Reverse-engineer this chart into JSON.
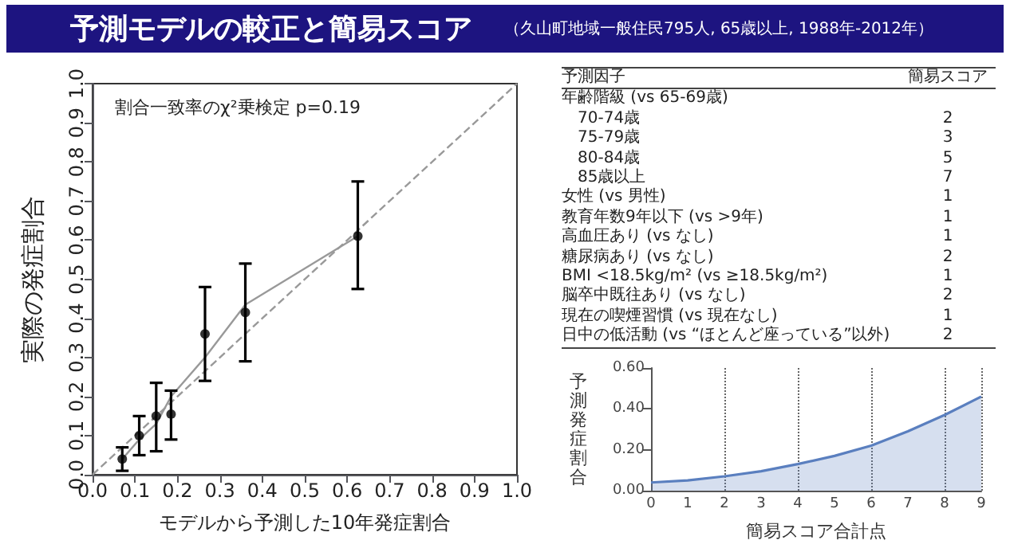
{
  "chart_data": [
    {
      "type": "scatter",
      "title": "予測モデルの較正と簡易スコア",
      "subtitle": "（久山町地域一般住民795人, 65歳以上, 1988年-2012年）",
      "xlabel": "モデルから予測した10年発症割合",
      "ylabel": "実際の発症割合",
      "annotations": [
        "割合一致率のχ²乗検定 p=0.19"
      ],
      "xlim": [
        0,
        1
      ],
      "ylim": [
        0,
        1
      ],
      "xticks": [
        {
          "value": 0,
          "label": "0.0"
        },
        {
          "value": 0.1,
          "label": "0.1"
        },
        {
          "value": 0.2,
          "label": "0.2"
        },
        {
          "value": 0.3,
          "label": "0.3"
        },
        {
          "value": 0.4,
          "label": "0.4"
        },
        {
          "value": 0.5,
          "label": "0.5"
        },
        {
          "value": 0.6,
          "label": "0.6"
        },
        {
          "value": 0.7,
          "label": "0.7"
        },
        {
          "value": 0.8,
          "label": "0.8"
        },
        {
          "value": 0.9,
          "label": "0.9"
        },
        {
          "value": 1,
          "label": "1.0"
        }
      ],
      "yticks": [
        {
          "value": 0,
          "label": "0.0"
        },
        {
          "value": 0.1,
          "label": "0.1"
        },
        {
          "value": 0.2,
          "label": "0.2"
        },
        {
          "value": 0.3,
          "label": "0.3"
        },
        {
          "value": 0.4,
          "label": "0.4"
        },
        {
          "value": 0.5,
          "label": "0.5"
        },
        {
          "value": 0.6,
          "label": "0.6"
        },
        {
          "value": 0.7,
          "label": "0.7"
        },
        {
          "value": 0.8,
          "label": "0.8"
        },
        {
          "value": 0.9,
          "label": "0.9"
        },
        {
          "value": 1,
          "label": "1.0"
        }
      ],
      "grid": false,
      "series": [
        {
          "type": "scatter",
          "color": "#000000",
          "marker": "circle",
          "x": [
            0.07,
            0.11,
            0.15,
            0.185,
            0.265,
            0.36,
            0.625
          ],
          "values": [
            0.04,
            0.1,
            0.15,
            0.155,
            0.36,
            0.415,
            0.61
          ],
          "errors": [
            [
              0.01,
              0.07
            ],
            [
              0.05,
              0.15
            ],
            [
              0.06,
              0.235
            ],
            [
              0.09,
              0.215
            ],
            [
              0.24,
              0.48
            ],
            [
              0.29,
              0.54
            ],
            [
              0.475,
              0.75
            ]
          ]
        },
        {
          "type": "line",
          "color": "#999999",
          "marker": "none",
          "line_style": "solid",
          "x": [
            0.07,
            0.11,
            0.15,
            0.185,
            0.265,
            0.36,
            0.625
          ],
          "values": [
            0.04,
            0.09,
            0.13,
            0.2,
            0.3,
            0.435,
            0.61
          ]
        },
        {
          "type": "line",
          "color": "#999999",
          "marker": "none",
          "line_style": "dashed",
          "x": [
            0,
            1
          ],
          "values": [
            0,
            1
          ]
        }
      ]
    },
    {
      "type": "other",
      "annotations": [
        "予測因子",
        "簡易スコア"
      ],
      "categories": [
        "年齢階級 (vs 65-69歳)",
        "　70-74歳",
        "　75-79歳",
        "　80-84歳",
        "　85歳以上",
        "女性 (vs 男性)",
        "教育年数9年以下 (vs >9年)",
        "高血圧あり (vs なし)",
        "糖尿病あり (vs なし)",
        "BMI <18.5kg/m² (vs ≥18.5kg/m²)",
        "脳卒中既往あり (vs なし)",
        "現在の喫煙習慣 (vs 現在なし)",
        "日中の低活動 (vs “ほとんど座っている”以外)"
      ],
      "values": [
        null,
        2,
        3,
        5,
        7,
        1,
        1,
        1,
        2,
        1,
        2,
        1,
        2
      ],
      "data_labels": true
    },
    {
      "type": "area",
      "xlabel": "簡易スコア合計点",
      "ylabel": "予測発症割合",
      "xlim": [
        0,
        9
      ],
      "xticks": [
        0,
        1,
        2,
        3,
        4,
        5,
        6,
        7,
        8,
        9
      ],
      "ylim": [
        0,
        0.6
      ],
      "yticks": [
        {
          "value": 0,
          "label": "0.00"
        },
        {
          "value": 0.2,
          "label": "0.20"
        },
        {
          "value": 0.4,
          "label": "0.40"
        },
        {
          "value": 0.6,
          "label": "0.60"
        }
      ],
      "grid": "x",
      "marker": "none",
      "x": [
        0,
        1,
        2,
        3,
        4,
        5,
        6,
        7,
        8,
        9
      ],
      "series": [
        {
          "color": "#5a7fbf",
          "values": [
            0.04,
            0.05,
            0.07,
            0.095,
            0.13,
            0.17,
            0.22,
            0.29,
            0.37,
            0.46
          ]
        }
      ]
    }
  ]
}
